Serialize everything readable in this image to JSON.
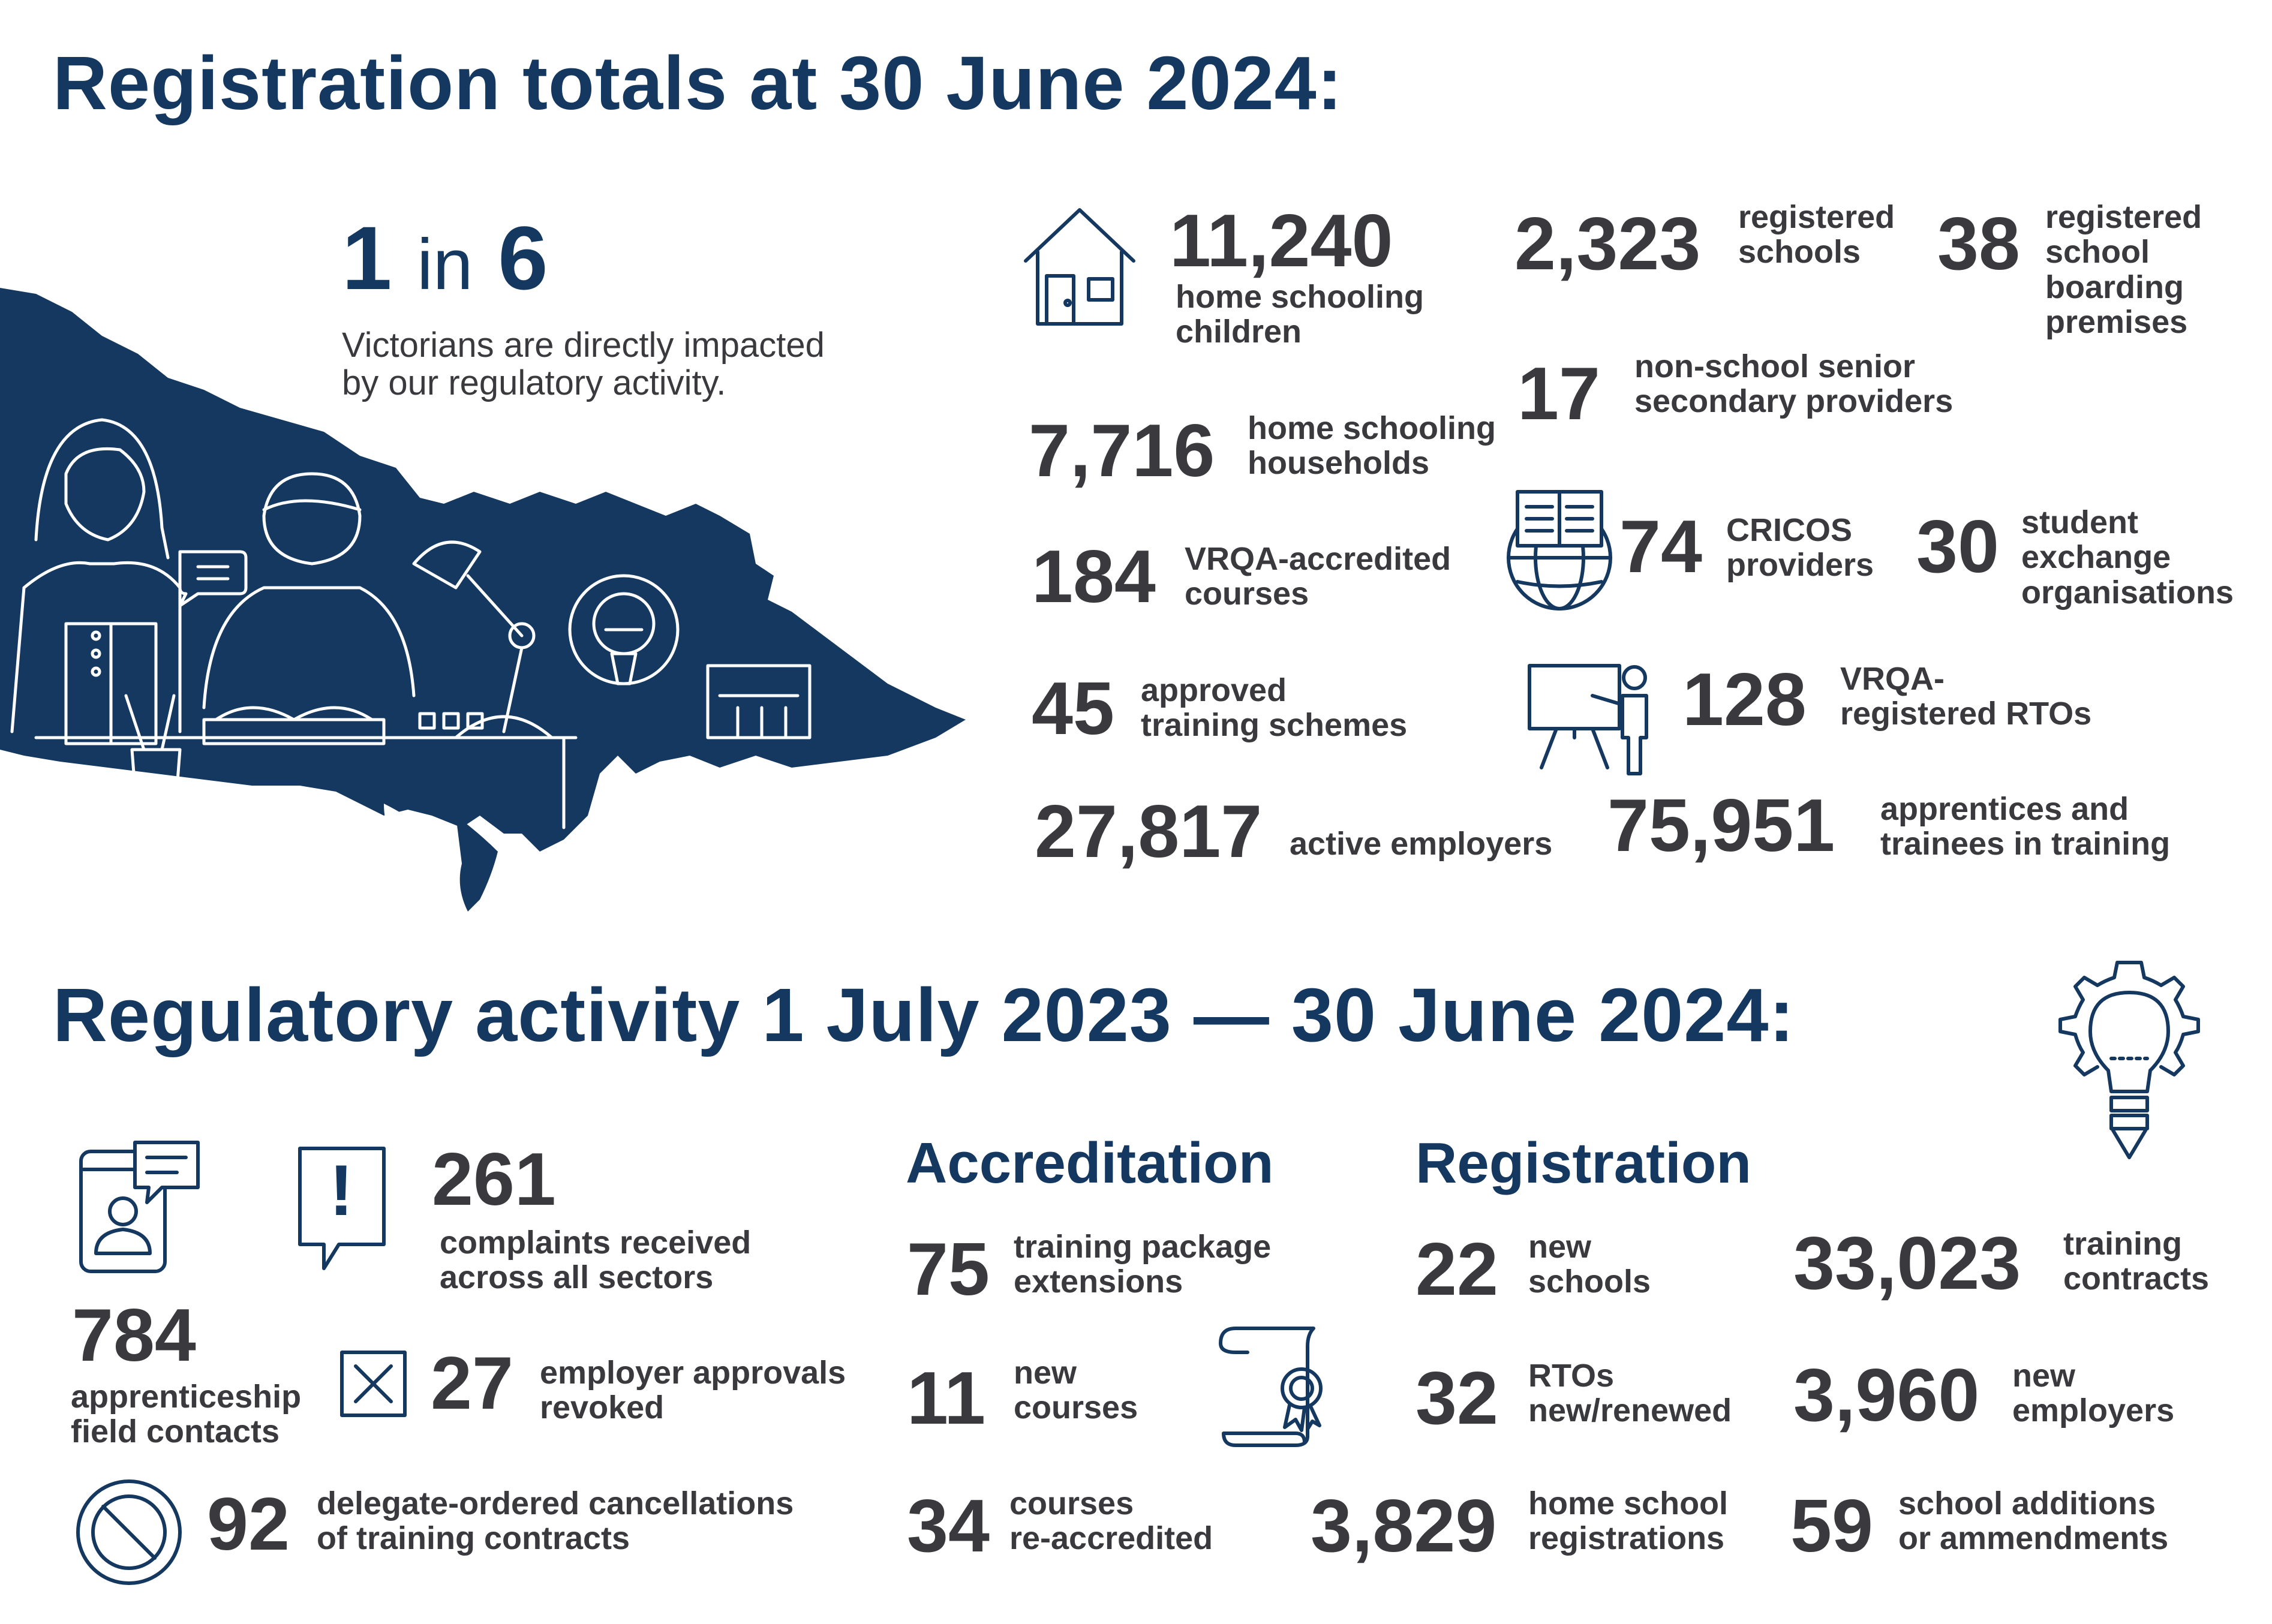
{
  "title_registration": "Registration totals at 30 June 2024:",
  "title_regulatory": "Regulatory activity 1 July 2023 — 30 June 2024:",
  "impact": {
    "number": "1",
    "in_word": "in",
    "of": "6",
    "text": "Victorians are directly impacted\nby our regulatory activity."
  },
  "totals": [
    {
      "value": "11,240",
      "label": "home schooling\nchildren"
    },
    {
      "value": "2,323",
      "label": "registered\nschools"
    },
    {
      "value": "38",
      "label": "registered\nschool\nboarding\npremises"
    },
    {
      "value": "17",
      "label": "non-school senior\nsecondary providers"
    },
    {
      "value": "7,716",
      "label": "home schooling\nhouseholds"
    },
    {
      "value": "184",
      "label": "VRQA-accredited\ncourses"
    },
    {
      "value": "74",
      "label": "CRICOS\nproviders"
    },
    {
      "value": "30",
      "label": "student\nexchange\norganisations"
    },
    {
      "value": "45",
      "label": "approved\ntraining schemes"
    },
    {
      "value": "128",
      "label": "VRQA-\nregistered RTOs"
    },
    {
      "value": "27,817",
      "label": "active employers"
    },
    {
      "value": "75,951",
      "label": "apprentices and\ntrainees in training"
    }
  ],
  "activity": {
    "complaints": {
      "value": "261",
      "label": "complaints received\nacross all sectors"
    },
    "field_contacts": {
      "value": "784",
      "label": "apprenticeship\nfield contacts"
    },
    "revoked": {
      "value": "27",
      "label": "employer approvals\nrevoked"
    },
    "cancellations": {
      "value": "92",
      "label": "delegate-ordered cancellations\nof training contracts"
    }
  },
  "accreditation": {
    "heading": "Accreditation",
    "items": [
      {
        "value": "75",
        "label": "training package\nextensions"
      },
      {
        "value": "11",
        "label": "new\ncourses"
      },
      {
        "value": "34",
        "label": "courses\nre-accredited"
      }
    ]
  },
  "registration": {
    "heading": "Registration",
    "items": [
      {
        "value": "22",
        "label": "new\nschools"
      },
      {
        "value": "33,023",
        "label": "training\ncontracts"
      },
      {
        "value": "32",
        "label": "RTOs\nnew/renewed"
      },
      {
        "value": "3,960",
        "label": "new\nemployers"
      },
      {
        "value": "3,829",
        "label": "home school\nregistrations"
      },
      {
        "value": "59",
        "label": "school additions\nor ammendments"
      }
    ]
  },
  "icons": [
    "house-icon",
    "globe-book-icon",
    "teacher-board-icon",
    "lightbulb-gear-icon",
    "phone-chat-icon",
    "alert-icon",
    "cross-box-icon",
    "prohibited-icon",
    "certificate-scroll-icon"
  ],
  "colors": {
    "navy": "#143860",
    "text": "#3a3a3e"
  }
}
